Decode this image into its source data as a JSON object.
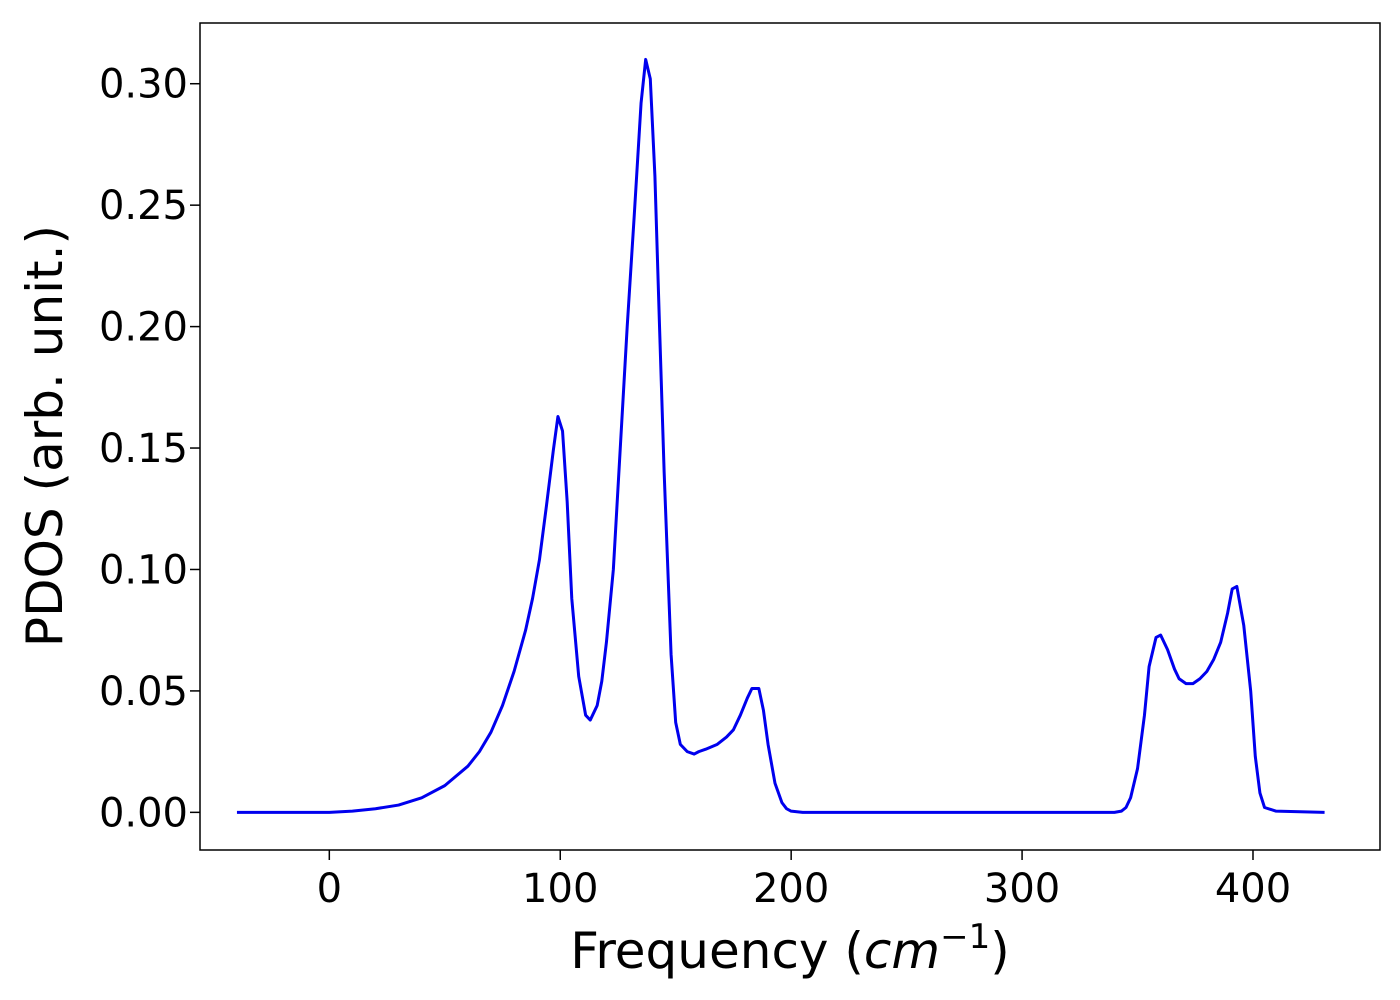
{
  "chart_data": {
    "type": "line",
    "xlabel": "Frequency (cm",
    "xlabel_superscript": "−1",
    "xlabel_suffix": ")",
    "ylabel": "PDOS (arb. unit.)",
    "xlim": [
      -56,
      455
    ],
    "ylim": [
      -0.0155,
      0.325
    ],
    "xticks": [
      0,
      100,
      200,
      300,
      400
    ],
    "xtick_labels": [
      "0",
      "100",
      "200",
      "300",
      "400"
    ],
    "yticks": [
      0.0,
      0.05,
      0.1,
      0.15,
      0.2,
      0.25,
      0.3
    ],
    "ytick_labels": [
      "0.00",
      "0.05",
      "0.10",
      "0.15",
      "0.20",
      "0.25",
      "0.30"
    ],
    "grid": false,
    "legend": "none",
    "series": [
      {
        "color": "#0000ee",
        "x": [
          -40,
          0,
          10,
          20,
          30,
          40,
          50,
          60,
          65,
          70,
          75,
          80,
          85,
          88,
          91,
          94,
          97,
          99,
          101,
          103,
          105,
          108,
          111,
          113,
          116,
          118,
          120,
          123,
          126,
          129,
          132,
          135,
          137,
          139,
          141,
          143,
          145,
          148,
          150,
          152,
          155,
          158,
          160,
          163,
          168,
          172,
          175,
          178,
          181,
          183,
          186,
          188,
          190,
          193,
          196,
          198,
          200,
          205,
          215,
          250,
          300,
          340,
          343,
          345,
          347,
          350,
          353,
          355,
          358,
          360,
          363,
          366,
          368,
          371,
          374,
          377,
          380,
          383,
          386,
          389,
          391,
          393,
          396,
          399,
          401,
          403,
          405,
          410,
          431
        ],
        "y": [
          0.0,
          0.0,
          0.0005,
          0.0015,
          0.003,
          0.006,
          0.011,
          0.019,
          0.025,
          0.033,
          0.044,
          0.058,
          0.075,
          0.088,
          0.104,
          0.126,
          0.149,
          0.163,
          0.157,
          0.128,
          0.088,
          0.056,
          0.04,
          0.038,
          0.044,
          0.054,
          0.07,
          0.1,
          0.15,
          0.2,
          0.245,
          0.292,
          0.31,
          0.302,
          0.262,
          0.2,
          0.14,
          0.065,
          0.037,
          0.028,
          0.025,
          0.024,
          0.025,
          0.026,
          0.028,
          0.031,
          0.034,
          0.04,
          0.047,
          0.051,
          0.051,
          0.042,
          0.028,
          0.012,
          0.004,
          0.0015,
          0.0005,
          0.0,
          0.0,
          0.0,
          0.0,
          0.0,
          0.0005,
          0.002,
          0.006,
          0.018,
          0.04,
          0.06,
          0.072,
          0.073,
          0.067,
          0.059,
          0.055,
          0.053,
          0.053,
          0.055,
          0.058,
          0.063,
          0.07,
          0.082,
          0.092,
          0.093,
          0.077,
          0.05,
          0.023,
          0.008,
          0.002,
          0.0005,
          0.0
        ]
      }
    ]
  }
}
